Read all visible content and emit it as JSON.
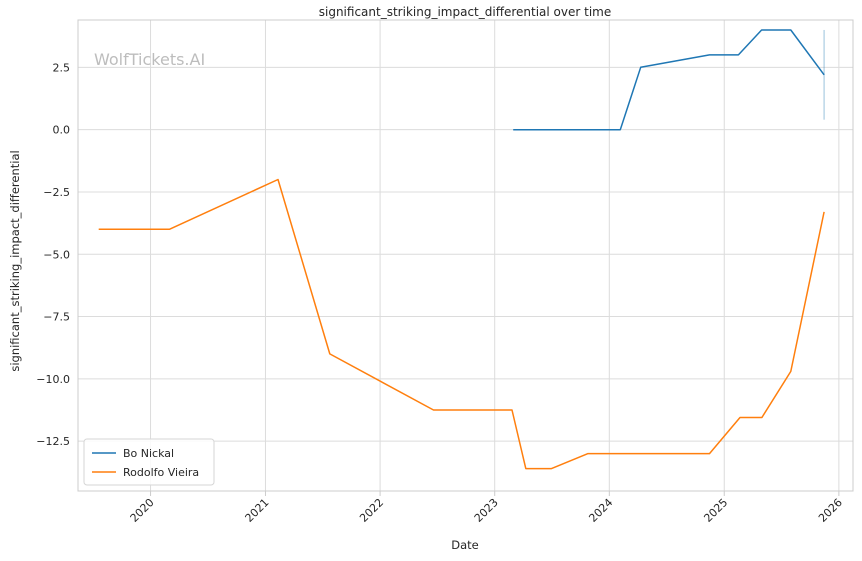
{
  "chart_data": {
    "type": "line",
    "title": "significant_striking_impact_differential over time",
    "xlabel": "Date",
    "ylabel": "significant_striking_impact_differential",
    "watermark": "WolfTickets.AI",
    "x_ticks": [
      "2020",
      "2021",
      "2022",
      "2023",
      "2024",
      "2025",
      "2026"
    ],
    "y_ticks": [
      "−12.5",
      "−10.0",
      "−7.5",
      "−5.0",
      "−2.5",
      "0.0",
      "2.5"
    ],
    "y_tick_values": [
      -12.5,
      -10.0,
      -7.5,
      -5.0,
      -2.5,
      0.0,
      2.5
    ],
    "xlim": [
      "2019-05-15",
      "2026-02-15"
    ],
    "ylim": [
      -14.5,
      4.4
    ],
    "grid": true,
    "legend_position": "lower-left",
    "series": [
      {
        "name": "Bo Nickal",
        "color": "#1f77b4",
        "points": [
          [
            "2023-03-01",
            0.0
          ],
          [
            "2024-02-05",
            0.0
          ],
          [
            "2024-04-10",
            2.5
          ],
          [
            "2024-11-15",
            3.0
          ],
          [
            "2025-02-15",
            3.0
          ],
          [
            "2025-04-30",
            4.0
          ],
          [
            "2025-08-01",
            4.0
          ],
          [
            "2025-11-15",
            2.2
          ]
        ],
        "error_band": {
          "x": "2025-11-15",
          "low": 0.4,
          "high": 4.0
        }
      },
      {
        "name": "Rodolfo Vieira",
        "color": "#ff7f0e",
        "points": [
          [
            "2019-07-20",
            -4.0
          ],
          [
            "2020-03-01",
            -4.0
          ],
          [
            "2021-02-10",
            -2.0
          ],
          [
            "2021-07-25",
            -9.0
          ],
          [
            "2022-06-20",
            -11.25
          ],
          [
            "2023-02-25",
            -11.25
          ],
          [
            "2023-04-10",
            -13.6
          ],
          [
            "2023-07-01",
            -13.6
          ],
          [
            "2023-10-25",
            -13.0
          ],
          [
            "2024-11-15",
            -13.0
          ],
          [
            "2025-02-20",
            -11.55
          ],
          [
            "2025-05-01",
            -11.55
          ],
          [
            "2025-08-01",
            -9.7
          ],
          [
            "2025-11-15",
            -3.3
          ]
        ]
      }
    ]
  }
}
